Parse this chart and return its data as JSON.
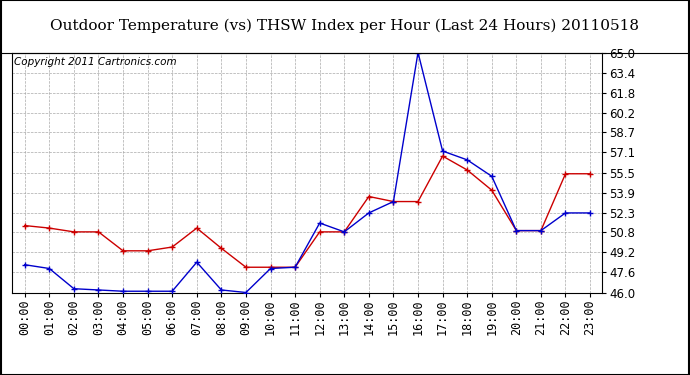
{
  "title": "Outdoor Temperature (vs) THSW Index per Hour (Last 24 Hours) 20110518",
  "copyright": "Copyright 2011 Cartronics.com",
  "hours": [
    "00:00",
    "01:00",
    "02:00",
    "03:00",
    "04:00",
    "05:00",
    "06:00",
    "07:00",
    "08:00",
    "09:00",
    "10:00",
    "11:00",
    "12:00",
    "13:00",
    "14:00",
    "15:00",
    "16:00",
    "17:00",
    "18:00",
    "19:00",
    "20:00",
    "21:00",
    "22:00",
    "23:00"
  ],
  "temp": [
    51.3,
    51.1,
    50.8,
    50.8,
    49.3,
    49.3,
    49.6,
    51.1,
    49.5,
    48.0,
    48.0,
    48.0,
    50.8,
    50.8,
    53.6,
    53.2,
    53.2,
    56.8,
    55.7,
    54.1,
    50.9,
    50.9,
    55.4,
    55.4
  ],
  "thsw": [
    48.2,
    47.9,
    46.3,
    46.2,
    46.1,
    46.1,
    46.1,
    48.4,
    46.2,
    46.0,
    47.9,
    48.0,
    51.5,
    50.8,
    52.3,
    53.2,
    65.0,
    57.2,
    56.5,
    55.2,
    50.9,
    50.9,
    52.3,
    52.3
  ],
  "temp_color": "#cc0000",
  "thsw_color": "#0000cc",
  "ylim_min": 46.0,
  "ylim_max": 65.0,
  "yticks": [
    46.0,
    47.6,
    49.2,
    50.8,
    52.3,
    53.9,
    55.5,
    57.1,
    58.7,
    60.2,
    61.8,
    63.4,
    65.0
  ],
  "bg_color": "#ffffff",
  "plot_bg_color": "#ffffff",
  "grid_color": "#aaaaaa",
  "title_fontsize": 11,
  "tick_fontsize": 8.5,
  "copyright_fontsize": 7.5
}
